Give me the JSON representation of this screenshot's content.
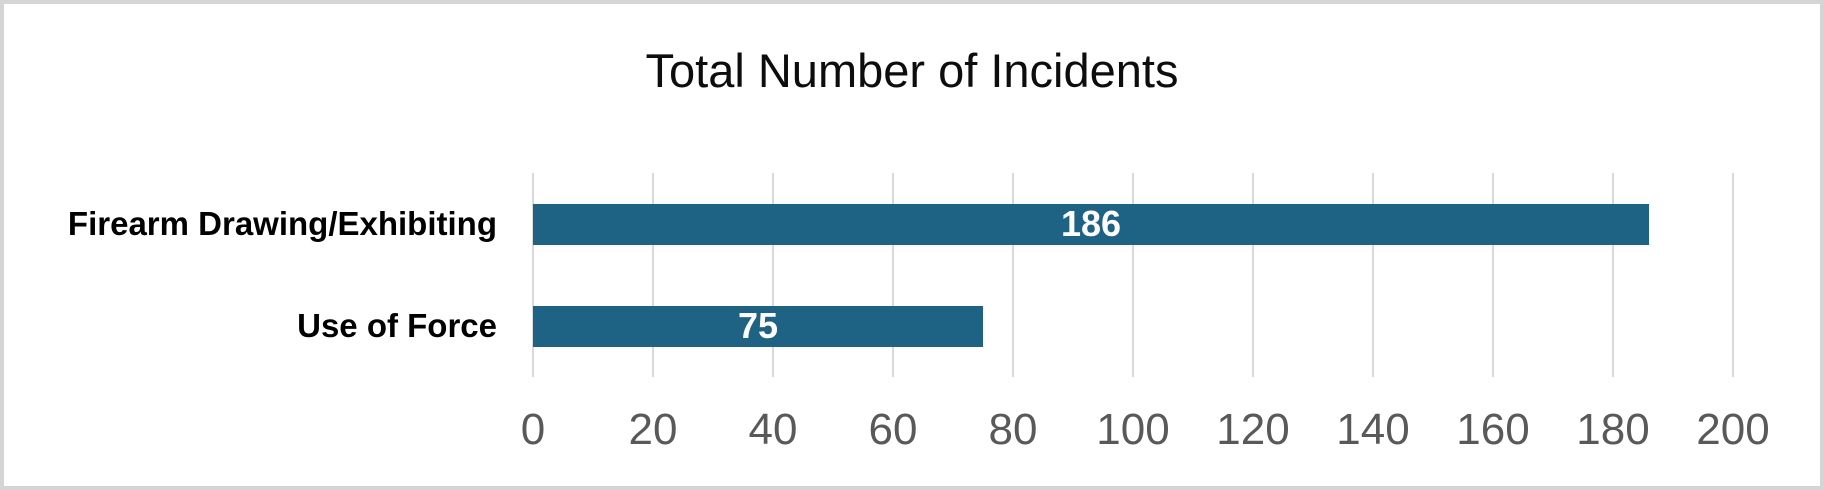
{
  "frame": {
    "background": "#FFFFFF",
    "border_color": "#D5D5D5"
  },
  "chart_data": {
    "type": "bar",
    "orientation": "horizontal",
    "title": "Total Number of Incidents",
    "categories": [
      "Firearm Drawing/Exhibiting",
      "Use of Force"
    ],
    "values": [
      186,
      75
    ],
    "xlabel": "",
    "ylabel": "",
    "xlim": [
      0,
      200
    ],
    "xticks": [
      0,
      20,
      40,
      60,
      80,
      100,
      120,
      140,
      160,
      180,
      200
    ],
    "grid": true,
    "legend": false,
    "value_label_position": "inside-center",
    "colors": {
      "bar": "#1E6284",
      "gridline": "#D9D9D9",
      "tick_label": "#595959",
      "title": "#0D0D0D",
      "category_label": "#000000",
      "value_label": "#FFFFFF"
    }
  }
}
